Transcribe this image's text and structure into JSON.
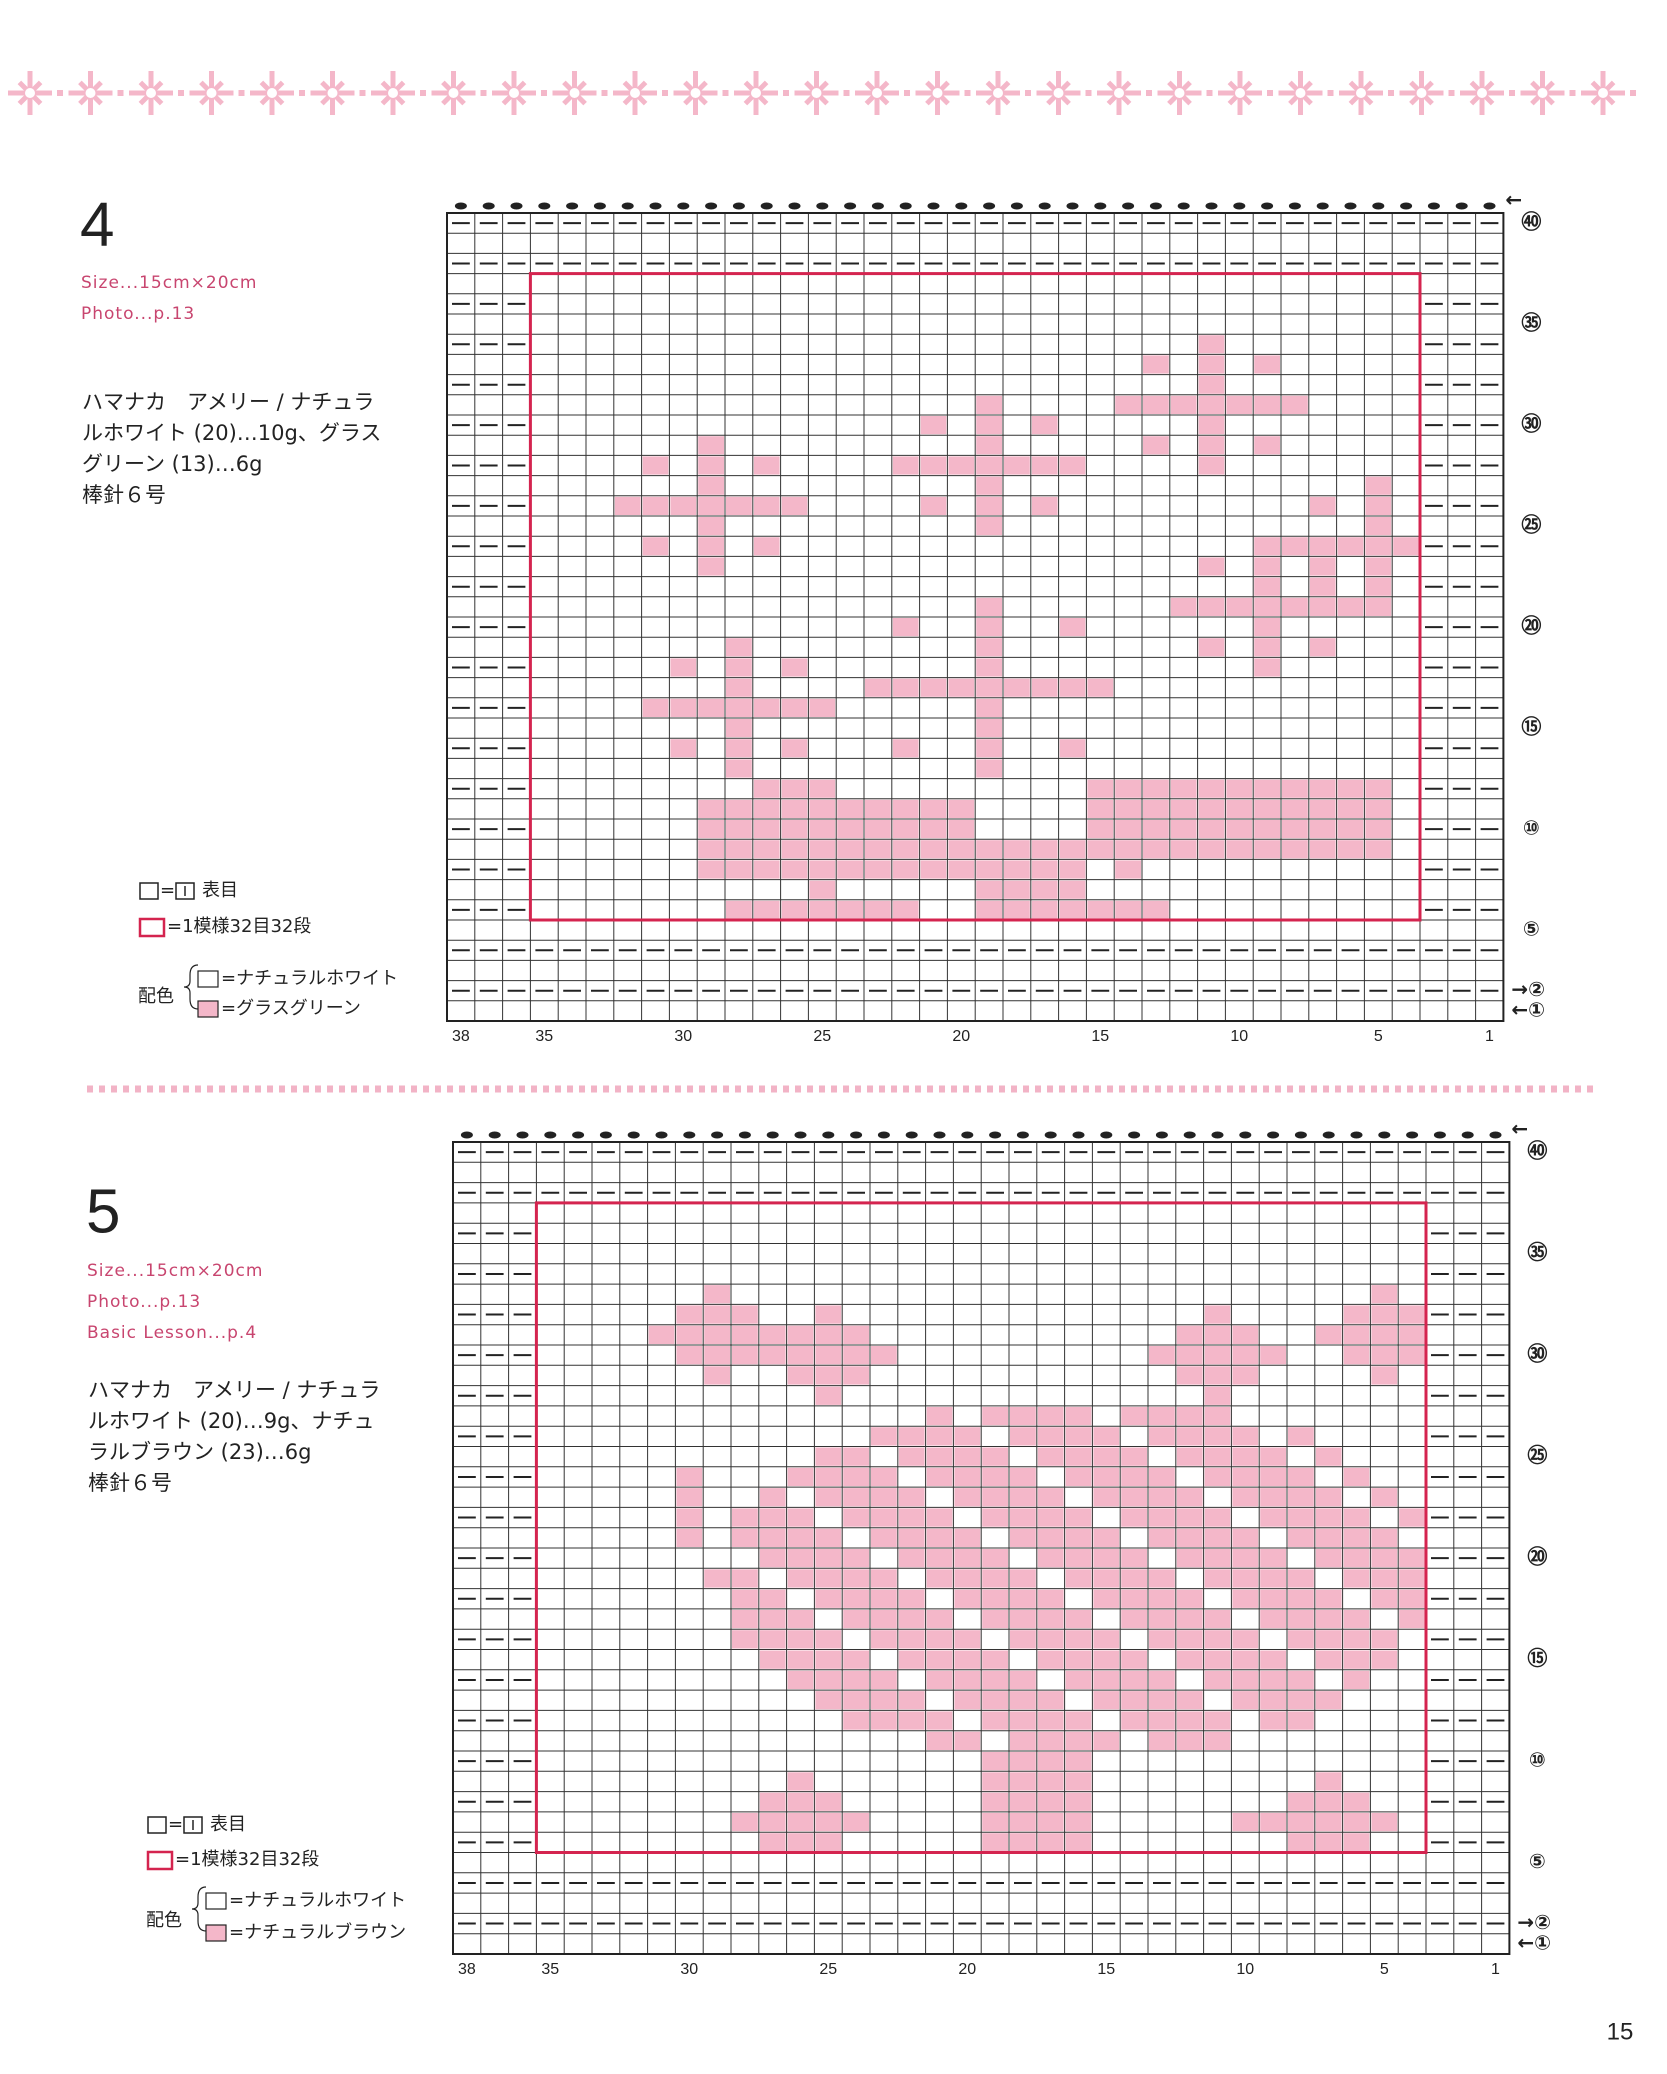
{
  "patterns": [
    {
      "number": "4",
      "size": "Size...15cm×20cm",
      "photo": "Photo...p.13",
      "materials": [
        "ハマナカ　アメリー / ナチュラ",
        "ルホワイト (20)…10g、グラス",
        "グリーン (13)…6g",
        "棒針６号"
      ],
      "legend": {
        "equals": "=",
        "knit": "表目",
        "repeat": "=1模様32目32段",
        "color_label": "配色",
        "colors": [
          "=ナチュラルホワイト",
          "=グラスグリーン"
        ]
      },
      "column_labels": [
        38,
        35,
        30,
        25,
        20,
        15,
        10,
        5,
        1
      ],
      "row_labels": [
        "㊵",
        "㉟",
        "㉚",
        "㉕",
        "⑳",
        "⑮",
        "⑩",
        "⑤"
      ],
      "row_arrows": [
        "→②",
        "←①"
      ],
      "top_arrow": "←"
    },
    {
      "number": "5",
      "size": "Size...15cm×20cm",
      "photo": "Photo...p.13",
      "lesson": "Basic Lesson...p.4",
      "materials": [
        "ハマナカ　アメリー / ナチュラ",
        "ルホワイト (20)…9g、ナチュ",
        "ラルブラウン (23)…6g",
        "棒針６号"
      ],
      "legend": {
        "equals": "=",
        "knit": "表目",
        "repeat": "=1模様32目32段",
        "color_label": "配色",
        "colors": [
          "=ナチュラルホワイト",
          "=ナチュラルブラウン"
        ]
      },
      "column_labels": [
        38,
        35,
        30,
        25,
        20,
        15,
        10,
        5,
        1
      ],
      "row_labels": [
        "㊵",
        "㉟",
        "㉚",
        "㉕",
        "⑳",
        "⑮",
        "⑩",
        "⑤"
      ],
      "row_arrows": [
        "→②",
        "←①"
      ],
      "top_arrow": "←"
    }
  ],
  "page_number": "15"
}
